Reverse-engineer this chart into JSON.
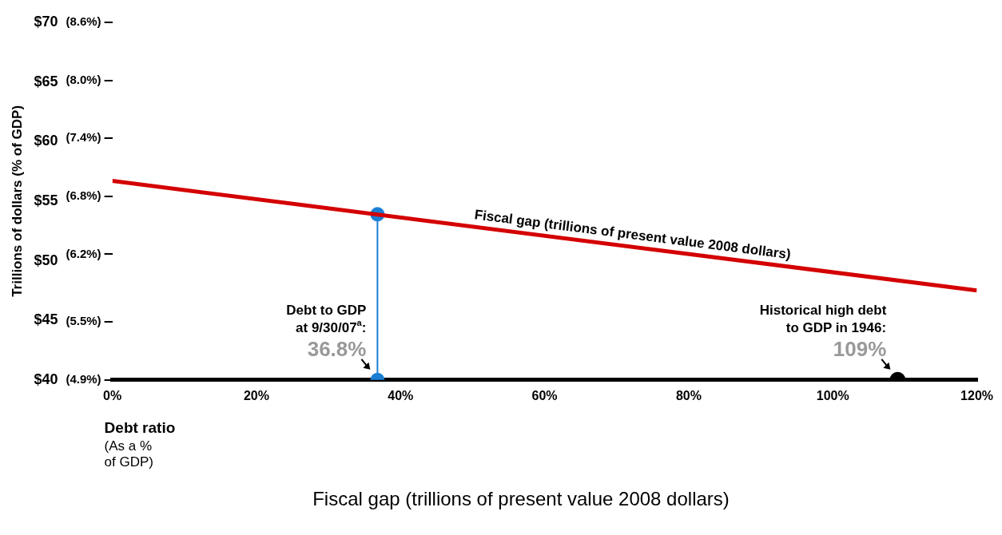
{
  "chart_data": {
    "type": "line",
    "ylabel": "Trillions of dollars (% of GDP)",
    "xlabel": "Debt ratio\n(As a %\nof GDP)",
    "xlim": [
      0,
      120
    ],
    "xticks": [
      {
        "value": 0,
        "label": "0%"
      },
      {
        "value": 20,
        "label": "20%"
      },
      {
        "value": 40,
        "label": "40%"
      },
      {
        "value": 60,
        "label": "60%"
      },
      {
        "value": 80,
        "label": "80%"
      },
      {
        "value": 100,
        "label": "100%"
      },
      {
        "value": 120,
        "label": "120%"
      }
    ],
    "ylim": [
      40,
      70
    ],
    "yticks": [
      {
        "value": 40,
        "label": "$40"
      },
      {
        "value": 45,
        "label": "$45"
      },
      {
        "value": 50,
        "label": "$50"
      },
      {
        "value": 55,
        "label": "$55"
      },
      {
        "value": 60,
        "label": "$60"
      },
      {
        "value": 65,
        "label": "$65"
      },
      {
        "value": 70,
        "label": "$70"
      }
    ],
    "y2lim": [
      4.9,
      8.6
    ],
    "y2ticks": [
      {
        "value": 4.9,
        "label": "(4.9%)"
      },
      {
        "value": 5.5,
        "label": "(5.5%)"
      },
      {
        "value": 6.2,
        "label": "(6.2%)"
      },
      {
        "value": 6.8,
        "label": "(6.8%)"
      },
      {
        "value": 7.4,
        "label": "(7.4%)"
      },
      {
        "value": 8.0,
        "label": "(8.0%)"
      },
      {
        "value": 8.6,
        "label": "(8.6%)"
      }
    ],
    "series": [
      {
        "name": "Fiscal gap (trillions of present value 2008 dollars)",
        "type": "line",
        "color": "#d40000",
        "x": [
          0,
          120
        ],
        "values": [
          56.7,
          47.5
        ],
        "marker": "none"
      },
      {
        "type": "line",
        "color": "#1a7fd4",
        "x": [
          36.8,
          36.8
        ],
        "values": [
          40,
          53.9
        ],
        "marker": "circle"
      },
      {
        "type": "scatter",
        "color": "#000000",
        "x": [
          109
        ],
        "values": [
          40
        ],
        "marker": "circle"
      }
    ],
    "annotations": [
      {
        "text": "Debt to GDP\nat 9/30/07$^{a}$:\n36.8%",
        "x": 36.8,
        "y": 40
      },
      {
        "text": "Historical high debt\nto GDP in 1946:\n109%",
        "x": 109,
        "y": 40
      }
    ],
    "legend": "bottom",
    "grid": false
  }
}
